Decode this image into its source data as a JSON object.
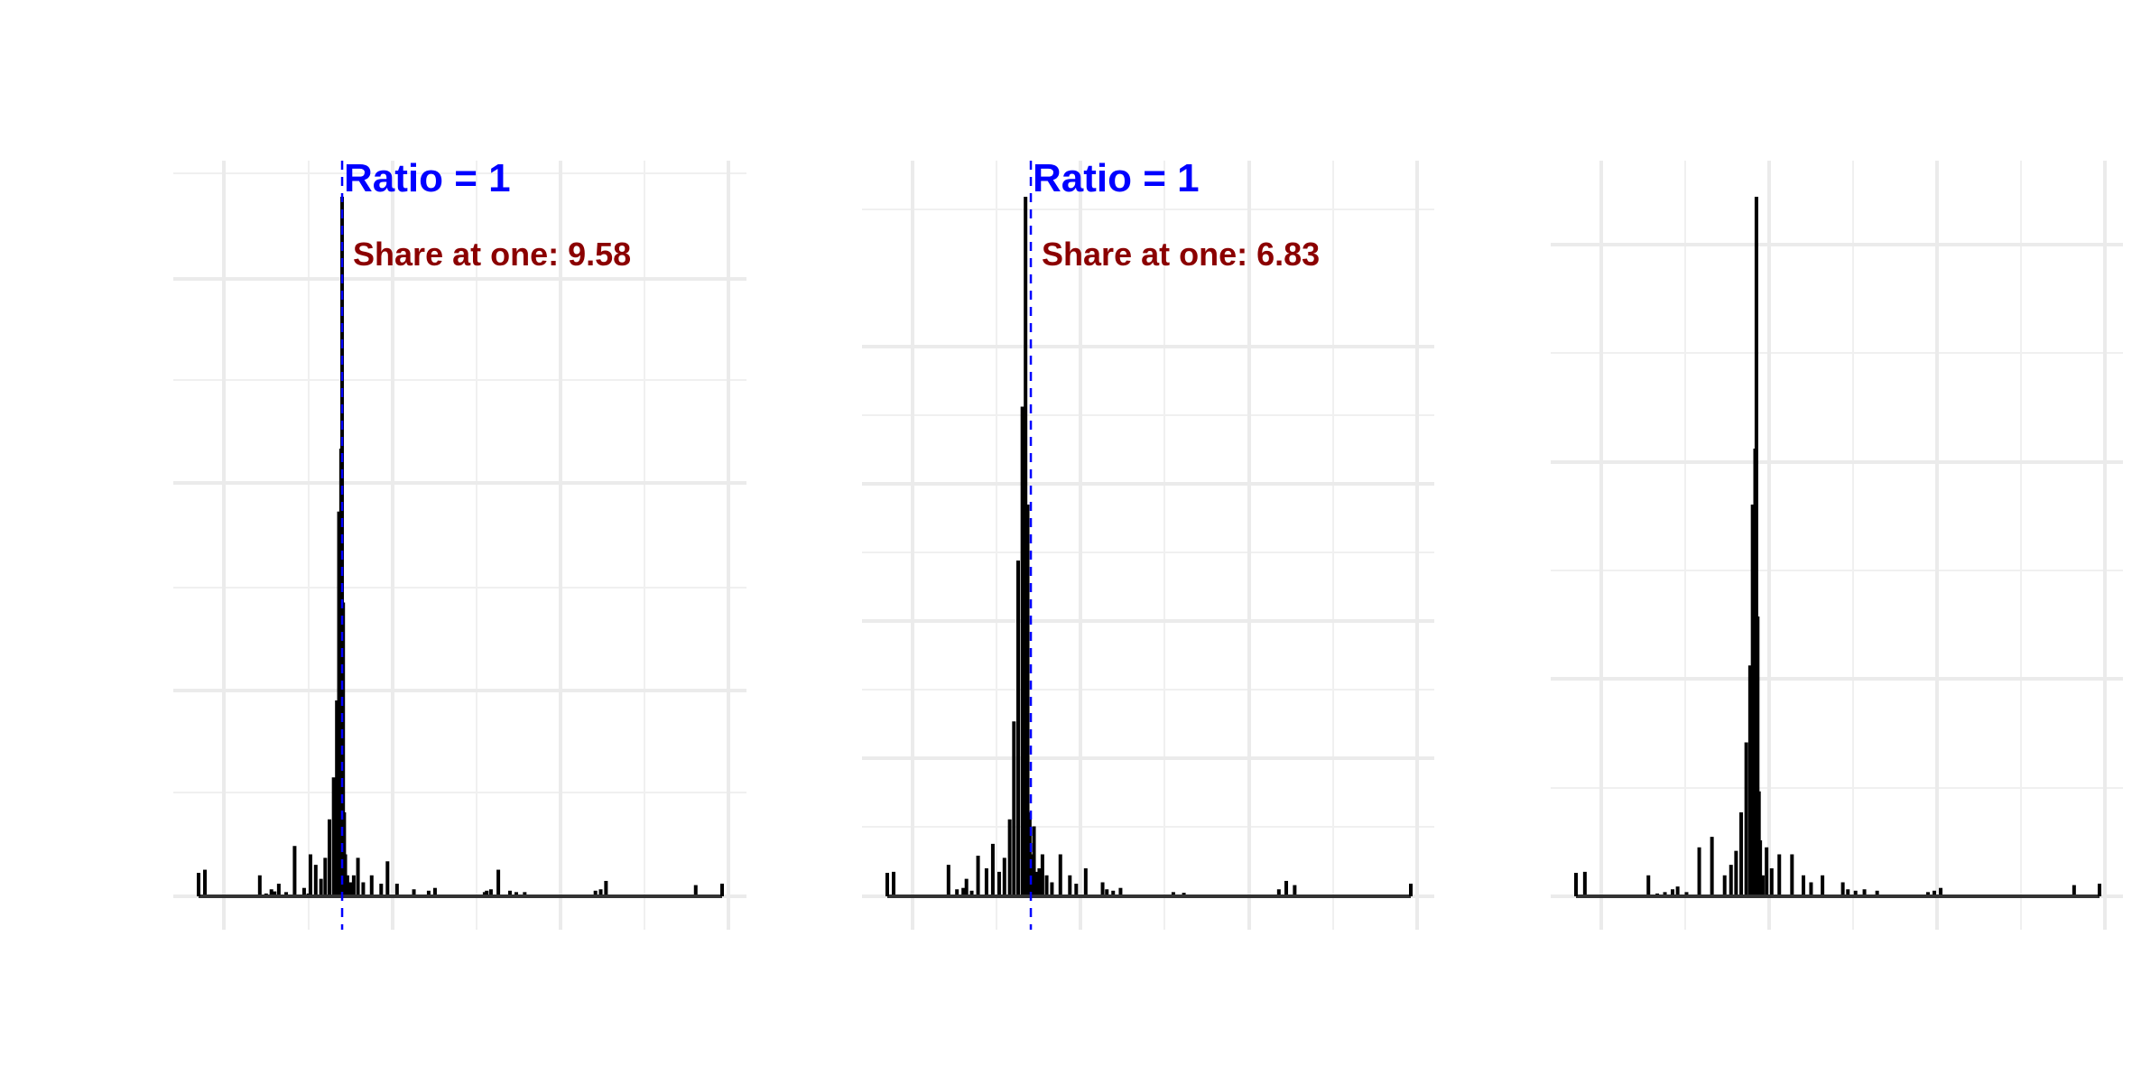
{
  "chart_data": [
    {
      "type": "histogram",
      "title": "",
      "xlabel": "",
      "ylabel": "",
      "grid": true,
      "reference_line": {
        "x": 1,
        "style": "dashed",
        "color": "#0000ff"
      },
      "annotations": [
        {
          "text": "Ratio = 1",
          "color": "#0000ff"
        },
        {
          "text": "Share at one: 9.58",
          "color": "#8b0000"
        }
      ],
      "series": [
        {
          "x": [
            -1.3,
            -0.78,
            -0.72,
            -0.67,
            -0.64,
            -0.6,
            -0.53,
            -0.45,
            -0.36,
            -0.32,
            -0.3,
            -0.25,
            -0.2,
            -0.16,
            -0.12,
            -0.08,
            -0.05,
            -0.03,
            -0.01,
            0.0,
            0.01,
            0.02,
            0.03,
            0.05,
            0.08,
            0.11,
            0.15,
            0.2,
            0.28,
            0.37,
            0.43,
            0.52,
            0.68,
            0.82,
            0.88,
            1.35,
            1.37,
            1.41,
            1.48,
            1.59,
            1.65,
            1.73,
            2.4,
            2.45,
            2.5,
            3.35
          ],
          "height": [
            0.038,
            0.03,
            0.004,
            0.01,
            0.007,
            0.018,
            0.006,
            0.072,
            0.012,
            0.004,
            0.06,
            0.045,
            0.025,
            0.055,
            0.11,
            0.17,
            0.28,
            0.55,
            0.64,
            1.0,
            0.42,
            0.12,
            0.06,
            0.03,
            0.02,
            0.03,
            0.055,
            0.02,
            0.03,
            0.018,
            0.05,
            0.018,
            0.01,
            0.008,
            0.012,
            0.006,
            0.008,
            0.01,
            0.038,
            0.008,
            0.006,
            0.006,
            0.008,
            0.01,
            0.022,
            0.016
          ]
        }
      ]
    },
    {
      "type": "histogram",
      "title": "",
      "xlabel": "",
      "ylabel": "",
      "grid": true,
      "reference_line": {
        "x": 1,
        "style": "dashed",
        "color": "#0000ff"
      },
      "annotations": [
        {
          "text": "Ratio = 1",
          "color": "#0000ff"
        },
        {
          "text": "Share at one: 6.83",
          "color": "#8b0000"
        }
      ],
      "series": [
        {
          "x": [
            -1.3,
            -0.78,
            -0.7,
            -0.64,
            -0.61,
            -0.56,
            -0.5,
            -0.42,
            -0.36,
            -0.3,
            -0.25,
            -0.2,
            -0.16,
            -0.12,
            -0.08,
            -0.05,
            -0.03,
            -0.01,
            0.0,
            0.01,
            0.02,
            0.03,
            0.05,
            0.08,
            0.11,
            0.15,
            0.2,
            0.28,
            0.37,
            0.43,
            0.52,
            0.68,
            0.72,
            0.78,
            0.85,
            1.35,
            1.45,
            2.35,
            2.42,
            2.5
          ],
          "height": [
            0.035,
            0.045,
            0.01,
            0.012,
            0.025,
            0.008,
            0.058,
            0.04,
            0.075,
            0.035,
            0.055,
            0.11,
            0.25,
            0.48,
            0.7,
            1.0,
            0.56,
            0.12,
            0.06,
            0.03,
            0.05,
            0.1,
            0.035,
            0.04,
            0.06,
            0.03,
            0.02,
            0.06,
            0.03,
            0.018,
            0.04,
            0.02,
            0.01,
            0.008,
            0.012,
            0.006,
            0.005,
            0.01,
            0.022,
            0.016
          ]
        }
      ]
    },
    {
      "type": "histogram",
      "title": "",
      "xlabel": "",
      "ylabel": "",
      "grid": true,
      "series": [
        {
          "x": [
            -1.35,
            -0.85,
            -0.78,
            -0.72,
            -0.66,
            -0.62,
            -0.55,
            -0.45,
            -0.35,
            -0.25,
            -0.2,
            -0.16,
            -0.12,
            -0.08,
            -0.05,
            -0.03,
            -0.01,
            0.0,
            0.01,
            0.02,
            0.03,
            0.05,
            0.08,
            0.12,
            0.18,
            0.28,
            0.37,
            0.43,
            0.52,
            0.68,
            0.72,
            0.78,
            0.85,
            0.95,
            1.35,
            1.4,
            1.45,
            2.5
          ],
          "height": [
            0.035,
            0.03,
            0.004,
            0.006,
            0.01,
            0.014,
            0.006,
            0.07,
            0.085,
            0.03,
            0.045,
            0.065,
            0.12,
            0.22,
            0.33,
            0.56,
            0.64,
            1.0,
            0.4,
            0.15,
            0.08,
            0.03,
            0.07,
            0.04,
            0.06,
            0.06,
            0.03,
            0.02,
            0.03,
            0.02,
            0.01,
            0.008,
            0.01,
            0.008,
            0.006,
            0.008,
            0.012,
            0.016
          ]
        }
      ]
    }
  ]
}
